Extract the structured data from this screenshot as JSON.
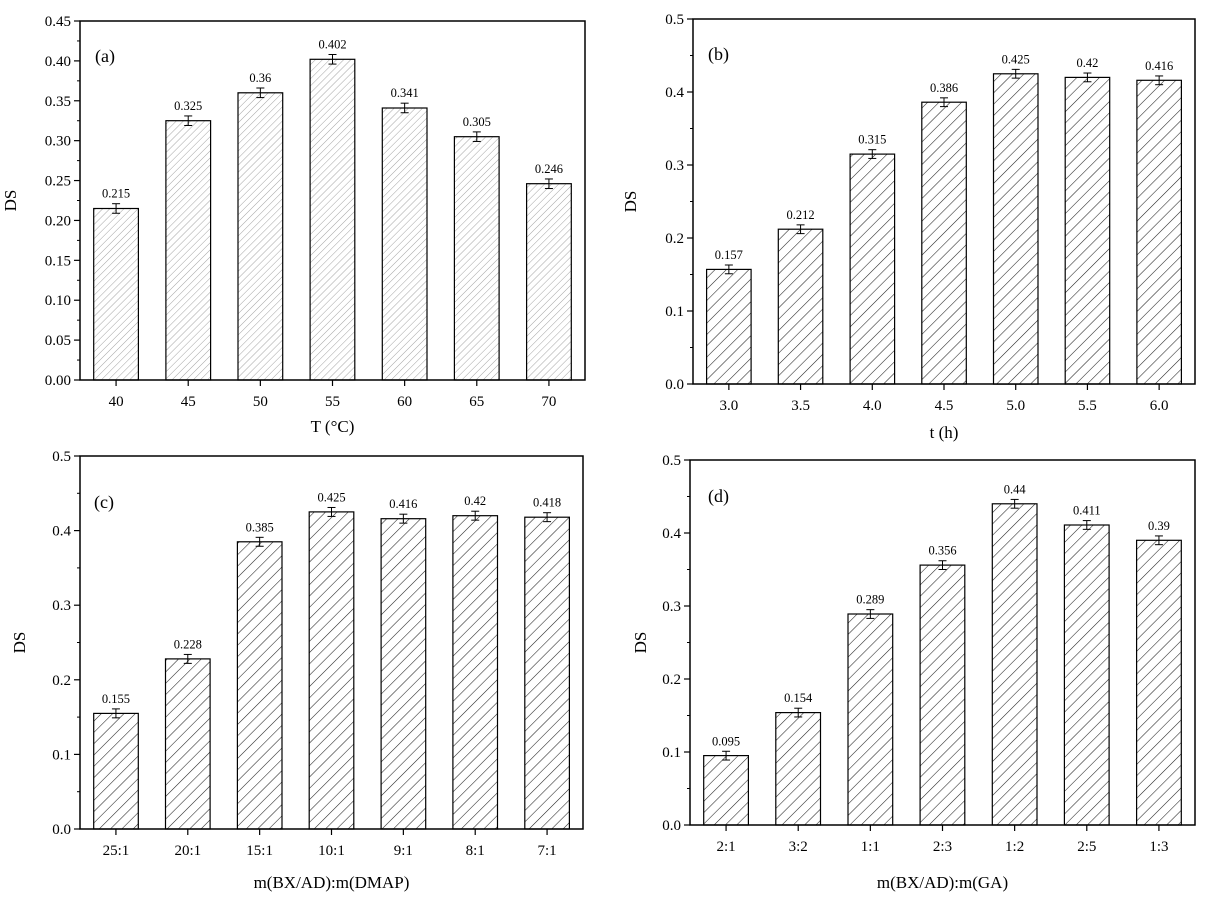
{
  "chart_data": [
    {
      "type": "bar",
      "panel_label": "(a)",
      "title": "",
      "xlabel": "T (°C)",
      "ylabel": "DS",
      "categories": [
        "40",
        "45",
        "50",
        "55",
        "60",
        "65",
        "70"
      ],
      "values": [
        0.215,
        0.325,
        0.36,
        0.402,
        0.341,
        0.305,
        0.246
      ],
      "value_labels": [
        "0.215",
        "0.325",
        "0.36",
        "0.402",
        "0.341",
        "0.305",
        "0.246"
      ],
      "error": [
        0.006,
        0.006,
        0.006,
        0.006,
        0.006,
        0.006,
        0.006
      ],
      "ylim": [
        0,
        0.45
      ],
      "yticks": [
        "0.00",
        "0.05",
        "0.10",
        "0.15",
        "0.20",
        "0.25",
        "0.30",
        "0.35",
        "0.40",
        "0.45"
      ],
      "hatch": "light"
    },
    {
      "type": "bar",
      "panel_label": "(b)",
      "title": "",
      "xlabel": "t (h)",
      "ylabel": "DS",
      "categories": [
        "3.0",
        "3.5",
        "4.0",
        "4.5",
        "5.0",
        "5.5",
        "6.0"
      ],
      "values": [
        0.157,
        0.212,
        0.315,
        0.386,
        0.425,
        0.42,
        0.416
      ],
      "value_labels": [
        "0.157",
        "0.212",
        "0.315",
        "0.386",
        "0.425",
        "0.42",
        "0.416"
      ],
      "error": [
        0.006,
        0.006,
        0.006,
        0.006,
        0.006,
        0.006,
        0.006
      ],
      "ylim": [
        0,
        0.5
      ],
      "yticks": [
        "0.0",
        "0.1",
        "0.2",
        "0.3",
        "0.4",
        "0.5"
      ],
      "hatch": "dark"
    },
    {
      "type": "bar",
      "panel_label": "(c)",
      "title": "",
      "xlabel": "m(BX/AD):m(DMAP)",
      "ylabel": "DS",
      "categories": [
        "25:1",
        "20:1",
        "15:1",
        "10:1",
        "9:1",
        "8:1",
        "7:1"
      ],
      "values": [
        0.155,
        0.228,
        0.385,
        0.425,
        0.416,
        0.42,
        0.418
      ],
      "value_labels": [
        "0.155",
        "0.228",
        "0.385",
        "0.425",
        "0.416",
        "0.42",
        "0.418"
      ],
      "error": [
        0.006,
        0.006,
        0.006,
        0.006,
        0.006,
        0.006,
        0.006
      ],
      "ylim": [
        0,
        0.5
      ],
      "yticks": [
        "0.0",
        "0.1",
        "0.2",
        "0.3",
        "0.4",
        "0.5"
      ],
      "hatch": "dark"
    },
    {
      "type": "bar",
      "panel_label": "(d)",
      "title": "",
      "xlabel": "m(BX/AD):m(GA)",
      "ylabel": "DS",
      "categories": [
        "2:1",
        "3:2",
        "1:1",
        "2:3",
        "1:2",
        "2:5",
        "1:3"
      ],
      "values": [
        0.095,
        0.154,
        0.289,
        0.356,
        0.44,
        0.411,
        0.39
      ],
      "value_labels": [
        "0.095",
        "0.154",
        "0.289",
        "0.356",
        "0.44",
        "0.411",
        "0.39"
      ],
      "error": [
        0.006,
        0.006,
        0.006,
        0.006,
        0.006,
        0.006,
        0.006
      ],
      "ylim": [
        0,
        0.5
      ],
      "yticks": [
        "0.0",
        "0.1",
        "0.2",
        "0.3",
        "0.4",
        "0.5"
      ],
      "hatch": "dark"
    }
  ]
}
